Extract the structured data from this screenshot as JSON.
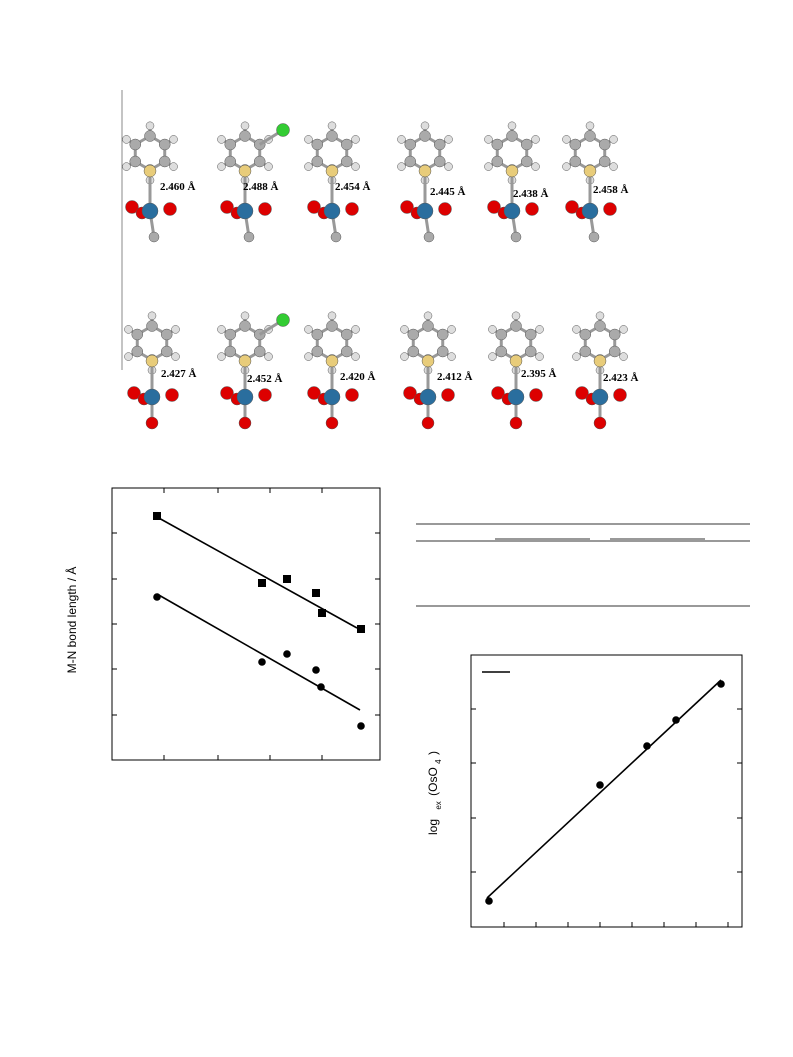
{
  "figure": {
    "top_row_labels": [
      "2.460 Å",
      "2.488 Å",
      "2.454 Å",
      "2.445 Å",
      "2.438 Å",
      "2.458 Å"
    ],
    "bottom_row_labels": [
      "2.427 Å",
      "2.452 Å",
      "2.420 Å",
      "2.412 Å",
      "2.395 Å",
      "2.423 Å"
    ],
    "plot1_ylabel": "M-N bond length / Å",
    "plot2_ylabel": {
      "log": "log",
      "sub": "ex",
      "species": "(OsO",
      "species_sub": "4",
      "close": ")"
    }
  }
}
